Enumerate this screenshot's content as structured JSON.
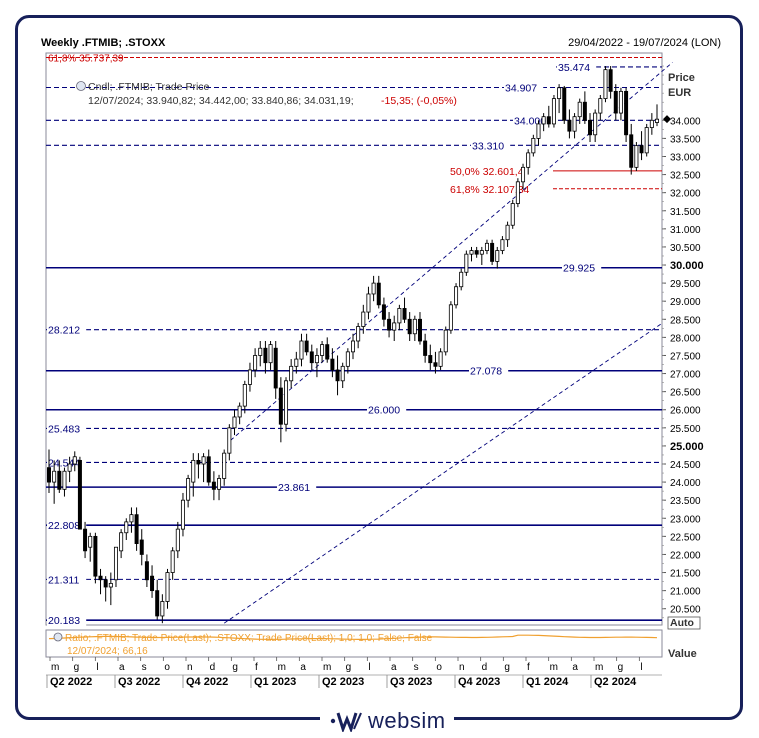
{
  "header": {
    "title": "Weekly .FTMIB; .STOXX",
    "range": "29/04/2022 - 19/07/2024 (LON)"
  },
  "legend": {
    "line1": "Cndl; .FTMIB; Trade Price",
    "line2_prefix": "12/07/2024; 33.940,82; 34.442,00; 33.840,86; 34.031,19;",
    "line2_change": "-15,35; (-0,05%)",
    "fib_top": "61,8% 35.737,39"
  },
  "price_axis": {
    "label": "Price",
    "unit": "EUR",
    "auto": "Auto",
    "ticks": [
      "34.000",
      "33.500",
      "33.000",
      "32.500",
      "32.000",
      "31.500",
      "31.000",
      "30.500",
      "30.000",
      "29.500",
      "29.000",
      "28.500",
      "28.000",
      "27.500",
      "27.000",
      "26.500",
      "26.000",
      "25.500",
      "25.000",
      "24.500",
      "24.000",
      "23.500",
      "23.000",
      "22.500",
      "22.000",
      "21.500",
      "21.000",
      "20.500"
    ],
    "bold_ticks": [
      "30.000",
      "25.000"
    ],
    "last_price": 34031.19
  },
  "lower_panel": {
    "legend1": "Ratio; .FTMIB; Trade Price(Last); .STOXX; Trade Price(Last);  1,0; 1,0; False; False",
    "legend2": "12/07/2024; 66,16",
    "axis_label": "Value"
  },
  "time_axis": {
    "months": [
      "m",
      "g",
      "l",
      "a",
      "s",
      "o",
      "n",
      "d",
      "g",
      "f",
      "m",
      "a",
      "m",
      "g",
      "l",
      "a",
      "s",
      "o",
      "n",
      "d",
      "g",
      "f",
      "m",
      "a",
      "m",
      "g",
      "l"
    ],
    "quarters": [
      "Q2 2022",
      "Q3 2022",
      "Q4 2022",
      "Q1 2023",
      "Q2 2023",
      "Q3 2023",
      "Q4 2023",
      "Q1 2024",
      "Q2 2024"
    ]
  },
  "brand": {
    "name": "websim",
    "icon": "websim-logo-icon"
  },
  "colors": {
    "navy": "#00007a",
    "up": "#ffffff",
    "down": "#000000",
    "fib": "#cc0000",
    "ratio": "#f0a030"
  },
  "chart_data": {
    "type": "candlestick",
    "title": "Weekly .FTMIB; .STOXX",
    "ylabel": "Price EUR",
    "ylim": [
      20050,
      35750
    ],
    "levels": [
      {
        "label": "35.474",
        "value": 35474,
        "style": "dashed"
      },
      {
        "label": "34.907",
        "value": 34907,
        "style": "dashed"
      },
      {
        "label": "34.000",
        "value": 34000,
        "style": "dashed"
      },
      {
        "label": "33.310",
        "value": 33310,
        "style": "dashed"
      },
      {
        "label": "29.925",
        "value": 29925,
        "style": "solid"
      },
      {
        "label": "28.212",
        "value": 28212,
        "style": "dashed"
      },
      {
        "label": "27.078",
        "value": 27078,
        "style": "solid"
      },
      {
        "label": "26.000",
        "value": 26000,
        "style": "solid"
      },
      {
        "label": "25.483",
        "value": 25483,
        "style": "dashed"
      },
      {
        "label": "24.544",
        "value": 24544,
        "style": "dashed"
      },
      {
        "label": "23.861",
        "value": 23861,
        "style": "solid"
      },
      {
        "label": "22.808",
        "value": 22808,
        "style": "solid"
      },
      {
        "label": "21.311",
        "value": 21311,
        "style": "dashed"
      },
      {
        "label": "20.183",
        "value": 20183,
        "style": "solid"
      }
    ],
    "fibonacci": [
      {
        "label": "50,0% 32.601,4",
        "value": 32601.4,
        "style": "solid"
      },
      {
        "label": "61,8% 32.107,34",
        "value": 32107.34,
        "style": "dashed"
      },
      {
        "label": "61,8% 35.737,39",
        "value": 35737.39,
        "style": "dashed"
      }
    ],
    "channel": {
      "upper": [
        {
          "week": 43,
          "value": 26100
        },
        {
          "week": 121,
          "value": 35600
        }
      ],
      "lower": [
        {
          "week": 34,
          "value": 20100
        },
        {
          "week": 156,
          "value": 32000
        }
      ]
    },
    "candles": [
      [
        24400,
        24900,
        23700,
        24000
      ],
      [
        24000,
        24600,
        23400,
        24300
      ],
      [
        24300,
        24600,
        23700,
        23800
      ],
      [
        23800,
        24400,
        23600,
        24300
      ],
      [
        24300,
        24700,
        24000,
        24500
      ],
      [
        24500,
        24850,
        24300,
        24700
      ],
      [
        24600,
        24700,
        22700,
        22700
      ],
      [
        22700,
        22900,
        21900,
        22100
      ],
      [
        22200,
        22600,
        21800,
        22500
      ],
      [
        22500,
        22600,
        21200,
        21400
      ],
      [
        21400,
        21600,
        20900,
        21300
      ],
      [
        21300,
        21400,
        20700,
        21100
      ],
      [
        21100,
        21500,
        20600,
        21200
      ],
      [
        21300,
        22200,
        21100,
        22200
      ],
      [
        22100,
        22700,
        21900,
        22600
      ],
      [
        22600,
        23000,
        22400,
        22900
      ],
      [
        22900,
        23300,
        22600,
        23100
      ],
      [
        23100,
        23300,
        22100,
        22300
      ],
      [
        22400,
        22700,
        21700,
        22000
      ],
      [
        21800,
        22000,
        21100,
        21300
      ],
      [
        21400,
        21700,
        20800,
        21000
      ],
      [
        21000,
        21300,
        20200,
        20300
      ],
      [
        20300,
        20900,
        20100,
        20700
      ],
      [
        20700,
        21600,
        20500,
        21500
      ],
      [
        21500,
        22200,
        21300,
        22100
      ],
      [
        22100,
        22900,
        21900,
        22700
      ],
      [
        22700,
        23700,
        22500,
        23500
      ],
      [
        23500,
        24200,
        23300,
        24100
      ],
      [
        24000,
        24800,
        23600,
        24600
      ],
      [
        24600,
        24800,
        24100,
        24500
      ],
      [
        24500,
        24800,
        24000,
        24700
      ],
      [
        24700,
        24900,
        23900,
        24000
      ],
      [
        24000,
        24300,
        23500,
        23800
      ],
      [
        23800,
        24200,
        23500,
        24100
      ],
      [
        24100,
        24900,
        23900,
        24800
      ],
      [
        24800,
        25600,
        24600,
        25500
      ],
      [
        25500,
        26000,
        25300,
        25800
      ],
      [
        25800,
        26200,
        25600,
        26100
      ],
      [
        26100,
        26800,
        25900,
        26700
      ],
      [
        26700,
        27300,
        26500,
        27100
      ],
      [
        27100,
        27700,
        26900,
        27500
      ],
      [
        27500,
        27900,
        27200,
        27700
      ],
      [
        27700,
        27900,
        27000,
        27300
      ],
      [
        27300,
        27900,
        27100,
        27800
      ],
      [
        27700,
        27900,
        26300,
        26600
      ],
      [
        26600,
        26900,
        25100,
        25600
      ],
      [
        25600,
        26900,
        25400,
        26800
      ],
      [
        26800,
        27400,
        26600,
        27200
      ],
      [
        27200,
        27600,
        27000,
        27400
      ],
      [
        27400,
        28100,
        27200,
        27900
      ],
      [
        27900,
        28100,
        27500,
        27600
      ],
      [
        27600,
        27800,
        27100,
        27300
      ],
      [
        27300,
        27700,
        26900,
        27500
      ],
      [
        27500,
        27900,
        27300,
        27800
      ],
      [
        27800,
        28000,
        27300,
        27400
      ],
      [
        27400,
        27700,
        26900,
        27100
      ],
      [
        27100,
        27500,
        26400,
        26800
      ],
      [
        26800,
        27300,
        26600,
        27200
      ],
      [
        27200,
        27700,
        27000,
        27600
      ],
      [
        27600,
        28100,
        27400,
        27900
      ],
      [
        27900,
        28400,
        27700,
        28300
      ],
      [
        28300,
        28900,
        28100,
        28700
      ],
      [
        28700,
        29400,
        28500,
        29200
      ],
      [
        29200,
        29700,
        29000,
        29500
      ],
      [
        29500,
        29700,
        28800,
        28900
      ],
      [
        28900,
        29100,
        28300,
        28500
      ],
      [
        28500,
        28700,
        28000,
        28200
      ],
      [
        28200,
        28600,
        27900,
        28400
      ],
      [
        28400,
        28900,
        28200,
        28800
      ],
      [
        28800,
        29100,
        28400,
        28500
      ],
      [
        28500,
        28700,
        27900,
        28100
      ],
      [
        28100,
        28600,
        27900,
        28500
      ],
      [
        28500,
        28700,
        27800,
        27900
      ],
      [
        27900,
        28100,
        27300,
        27500
      ],
      [
        27500,
        27800,
        27100,
        27300
      ],
      [
        27300,
        27600,
        27000,
        27200
      ],
      [
        27200,
        27700,
        27100,
        27600
      ],
      [
        27600,
        28300,
        27500,
        28200
      ],
      [
        28200,
        29000,
        28100,
        28900
      ],
      [
        28900,
        29500,
        28800,
        29400
      ],
      [
        29400,
        29900,
        29300,
        29800
      ],
      [
        29800,
        30400,
        29700,
        30300
      ],
      [
        30300,
        30500,
        30100,
        30400
      ],
      [
        30400,
        30500,
        30200,
        30300
      ],
      [
        30300,
        30500,
        30000,
        30400
      ],
      [
        30400,
        30700,
        30300,
        30600
      ],
      [
        30600,
        30700,
        30000,
        30100
      ],
      [
        30100,
        30500,
        29900,
        30400
      ],
      [
        30400,
        30800,
        30300,
        30700
      ],
      [
        30700,
        31200,
        30500,
        31100
      ],
      [
        31100,
        31800,
        31000,
        31700
      ],
      [
        31700,
        32400,
        31600,
        32300
      ],
      [
        32300,
        32800,
        32100,
        32700
      ],
      [
        32700,
        33200,
        32500,
        33100
      ],
      [
        33100,
        33600,
        33000,
        33500
      ],
      [
        33500,
        34000,
        33300,
        33900
      ],
      [
        33900,
        34200,
        33700,
        34100
      ],
      [
        34100,
        34400,
        33800,
        33900
      ],
      [
        33900,
        34700,
        33800,
        34600
      ],
      [
        34600,
        35000,
        34200,
        34900
      ],
      [
        34900,
        34950,
        33900,
        34000
      ],
      [
        34000,
        34300,
        33500,
        33700
      ],
      [
        33700,
        34200,
        33500,
        34100
      ],
      [
        34100,
        34600,
        33900,
        34500
      ],
      [
        34500,
        34800,
        33900,
        34000
      ],
      [
        34000,
        34200,
        33400,
        33600
      ],
      [
        33600,
        34300,
        33400,
        34200
      ],
      [
        34200,
        34700,
        34000,
        34600
      ],
      [
        34600,
        35500,
        34500,
        35400
      ],
      [
        35400,
        35500,
        34600,
        34800
      ],
      [
        34800,
        35000,
        34000,
        34200
      ],
      [
        34200,
        34900,
        34000,
        34800
      ],
      [
        34800,
        34900,
        33400,
        33600
      ],
      [
        33600,
        33900,
        32500,
        32700
      ],
      [
        32700,
        33400,
        32600,
        33300
      ],
      [
        33300,
        33700,
        32900,
        33100
      ],
      [
        33100,
        33900,
        33000,
        33800
      ],
      [
        33800,
        34200,
        33600,
        34000
      ],
      [
        33940,
        34442,
        33840,
        34031
      ]
    ],
    "ratio_series": {
      "name": "Ratio .FTMIB / .STOXX",
      "last": 66.16,
      "last_date": "12/07/2024"
    }
  }
}
